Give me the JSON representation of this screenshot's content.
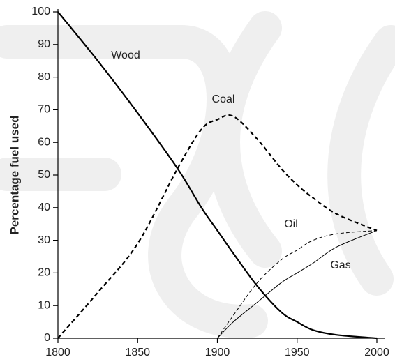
{
  "chart_data": {
    "type": "line",
    "ylabel": "Percentage fuel used",
    "x": [
      1800,
      1825,
      1850,
      1875,
      1890,
      1900,
      1910,
      1925,
      1940,
      1950,
      1960,
      1975,
      2000
    ],
    "series": [
      {
        "name": "Wood",
        "color": "#000000",
        "line_style": "solid-thick",
        "values": [
          100,
          85,
          69,
          52,
          40,
          33,
          26,
          16,
          8,
          5,
          2.5,
          1,
          0
        ]
      },
      {
        "name": "Coal",
        "color": "#000000",
        "line_style": "dashed-thick",
        "values": [
          0,
          14,
          29,
          52,
          64,
          67,
          68,
          61,
          52,
          47,
          43,
          38,
          33
        ]
      },
      {
        "name": "Oil",
        "color": "#000000",
        "line_style": "dashed-thin",
        "values": [
          null,
          null,
          null,
          null,
          null,
          0,
          7,
          17,
          24,
          27,
          30,
          32,
          33
        ]
      },
      {
        "name": "Gas",
        "color": "#000000",
        "line_style": "solid-thin",
        "values": [
          null,
          null,
          null,
          null,
          null,
          0,
          5,
          11,
          17,
          20,
          23,
          28,
          33
        ]
      }
    ],
    "xlim": [
      1800,
      2000
    ],
    "xticks": [
      1800,
      1850,
      1900,
      1950,
      2000
    ],
    "ylim": [
      0,
      100
    ],
    "yticks": [
      0,
      10,
      20,
      30,
      40,
      50,
      60,
      70,
      80,
      90,
      100
    ],
    "grid": false
  }
}
